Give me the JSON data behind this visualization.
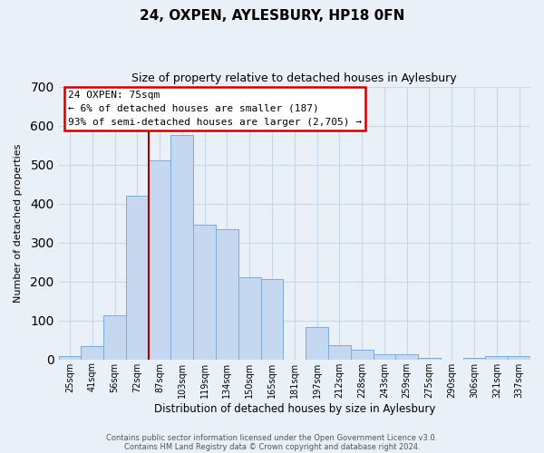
{
  "title": "24, OXPEN, AYLESBURY, HP18 0FN",
  "subtitle": "Size of property relative to detached houses in Aylesbury",
  "xlabel": "Distribution of detached houses by size in Aylesbury",
  "ylabel": "Number of detached properties",
  "categories": [
    "25sqm",
    "41sqm",
    "56sqm",
    "72sqm",
    "87sqm",
    "103sqm",
    "119sqm",
    "134sqm",
    "150sqm",
    "165sqm",
    "181sqm",
    "197sqm",
    "212sqm",
    "228sqm",
    "243sqm",
    "259sqm",
    "275sqm",
    "290sqm",
    "306sqm",
    "321sqm",
    "337sqm"
  ],
  "values": [
    8,
    35,
    112,
    420,
    510,
    575,
    345,
    333,
    210,
    205,
    0,
    83,
    37,
    25,
    13,
    13,
    5,
    0,
    5,
    8,
    8
  ],
  "bar_color": "#c5d8ef",
  "bar_edge_color": "#7aacda",
  "vline_x_idx": 3,
  "vline_color": "#aa0000",
  "annotation_title": "24 OXPEN: 75sqm",
  "annotation_line1": "← 6% of detached houses are smaller (187)",
  "annotation_line2": "93% of semi-detached houses are larger (2,705) →",
  "annotation_box_edgecolor": "#cc0000",
  "ylim": [
    0,
    700
  ],
  "yticks": [
    0,
    100,
    200,
    300,
    400,
    500,
    600,
    700
  ],
  "footer1": "Contains HM Land Registry data © Crown copyright and database right 2024.",
  "footer2": "Contains public sector information licensed under the Open Government Licence v3.0.",
  "background_color": "#eaf0f8",
  "grid_color": "#c8d8e8"
}
